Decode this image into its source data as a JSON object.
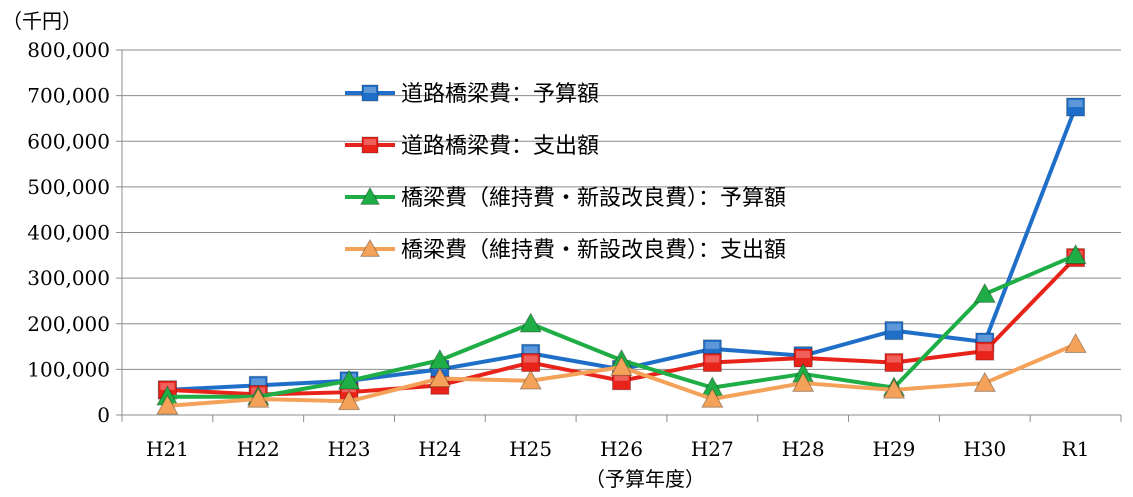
{
  "chart_data": {
    "type": "line",
    "title": "",
    "yunit_label": "（千円）",
    "xlabel": "（予算年度）",
    "ylabel": "",
    "categories": [
      "H21",
      "H22",
      "H23",
      "H24",
      "H25",
      "H26",
      "H27",
      "H28",
      "H29",
      "H30",
      "R1"
    ],
    "ylim": [
      0,
      800000
    ],
    "yticks": [
      0,
      100000,
      200000,
      300000,
      400000,
      500000,
      600000,
      700000,
      800000
    ],
    "ytick_labels": [
      "0",
      "100,000",
      "200,000",
      "300,000",
      "400,000",
      "500,000",
      "600,000",
      "700,000",
      "800,000"
    ],
    "grid": true,
    "legend_position": "top-center",
    "series": [
      {
        "name": "道路橋梁費：予算額",
        "color": "#1f6fc9",
        "marker": "square",
        "values": [
          55000,
          65000,
          75000,
          100000,
          135000,
          100000,
          145000,
          130000,
          185000,
          160000,
          675000
        ]
      },
      {
        "name": "道路橋梁費：支出額",
        "color": "#e8231a",
        "marker": "square",
        "values": [
          55000,
          45000,
          50000,
          65000,
          115000,
          75000,
          115000,
          125000,
          115000,
          140000,
          345000
        ]
      },
      {
        "name": "橋梁費（維持費・新設改良費）：予算額",
        "color": "#1fad46",
        "marker": "triangle",
        "values": [
          40000,
          40000,
          75000,
          120000,
          200000,
          120000,
          60000,
          90000,
          60000,
          265000,
          350000
        ]
      },
      {
        "name": "橋梁費（維持費・新設改良費）：支出額",
        "color": "#f4a259",
        "marker": "triangle",
        "values": [
          20000,
          35000,
          30000,
          80000,
          75000,
          105000,
          35000,
          70000,
          55000,
          70000,
          155000
        ]
      }
    ]
  }
}
